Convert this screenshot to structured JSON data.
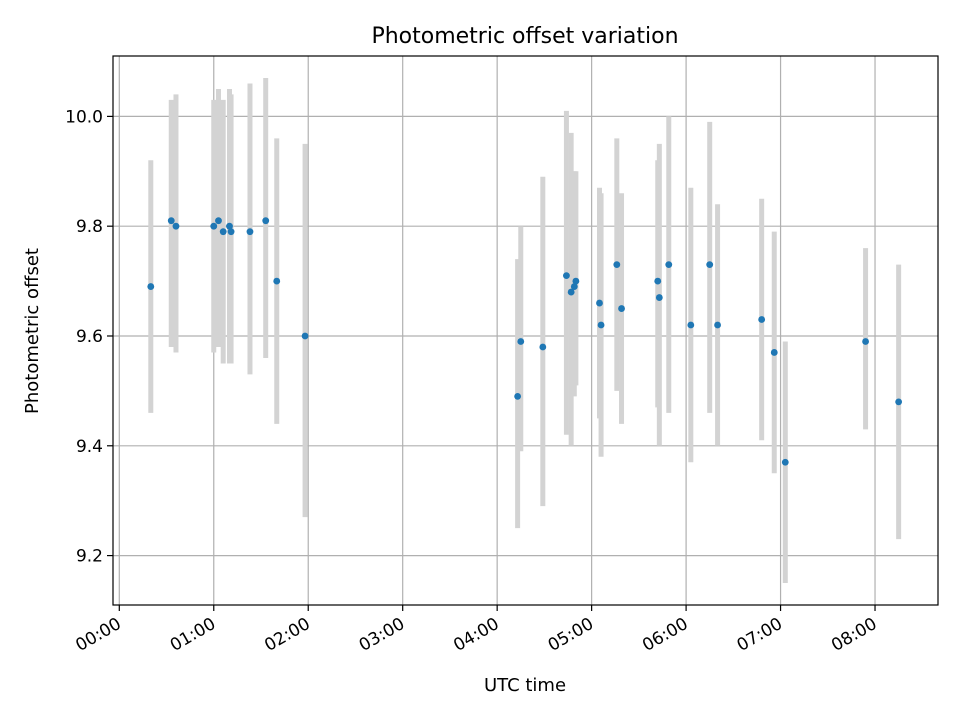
{
  "chart_data": {
    "type": "scatter",
    "title": "Photometric offset variation",
    "xlabel": "UTC time",
    "ylabel": "Photometric offset",
    "x_unit": "hours",
    "xlim": [
      "-00:04",
      "08:40"
    ],
    "ylim": [
      9.11,
      10.11
    ],
    "x_ticks": [
      "00:00",
      "01:00",
      "02:00",
      "03:00",
      "04:00",
      "05:00",
      "06:00",
      "07:00",
      "08:00"
    ],
    "y_ticks": [
      "9.2",
      "9.4",
      "9.6",
      "9.8",
      "10.0"
    ],
    "y_tick_values": [
      9.2,
      9.4,
      9.6,
      9.8,
      10.0
    ],
    "grid": true,
    "colors": {
      "marker": "#1f77b4",
      "errorbar": "#d3d3d3",
      "grid": "#b0b0b0"
    },
    "series": [
      {
        "points": [
          {
            "x": "00:20",
            "y": 9.69,
            "low": 9.46,
            "high": 9.92
          },
          {
            "x": "00:33",
            "y": 9.81,
            "low": 9.58,
            "high": 10.03
          },
          {
            "x": "00:36",
            "y": 9.8,
            "low": 9.57,
            "high": 10.04
          },
          {
            "x": "01:00",
            "y": 9.8,
            "low": 9.57,
            "high": 10.03
          },
          {
            "x": "01:03",
            "y": 9.81,
            "low": 9.58,
            "high": 10.05
          },
          {
            "x": "01:06",
            "y": 9.79,
            "low": 9.55,
            "high": 10.03
          },
          {
            "x": "01:10",
            "y": 9.8,
            "low": 9.55,
            "high": 10.05
          },
          {
            "x": "01:11",
            "y": 9.79,
            "low": 9.55,
            "high": 10.04
          },
          {
            "x": "01:23",
            "y": 9.79,
            "low": 9.53,
            "high": 10.06
          },
          {
            "x": "01:33",
            "y": 9.81,
            "low": 9.56,
            "high": 10.07
          },
          {
            "x": "01:40",
            "y": 9.7,
            "low": 9.44,
            "high": 9.96
          },
          {
            "x": "01:58",
            "y": 9.6,
            "low": 9.27,
            "high": 9.95
          },
          {
            "x": "04:13",
            "y": 9.49,
            "low": 9.25,
            "high": 9.74
          },
          {
            "x": "04:15",
            "y": 9.59,
            "low": 9.39,
            "high": 9.8
          },
          {
            "x": "04:29",
            "y": 9.58,
            "low": 9.29,
            "high": 9.89
          },
          {
            "x": "04:44",
            "y": 9.71,
            "low": 9.42,
            "high": 10.01
          },
          {
            "x": "04:47",
            "y": 9.68,
            "low": 9.4,
            "high": 9.97
          },
          {
            "x": "04:49",
            "y": 9.69,
            "low": 9.49,
            "high": 9.9
          },
          {
            "x": "04:50",
            "y": 9.7,
            "low": 9.51,
            "high": 9.9
          },
          {
            "x": "05:05",
            "y": 9.66,
            "low": 9.45,
            "high": 9.87
          },
          {
            "x": "05:06",
            "y": 9.62,
            "low": 9.38,
            "high": 9.86
          },
          {
            "x": "05:16",
            "y": 9.73,
            "low": 9.5,
            "high": 9.96
          },
          {
            "x": "05:19",
            "y": 9.65,
            "low": 9.44,
            "high": 9.86
          },
          {
            "x": "05:42",
            "y": 9.7,
            "low": 9.47,
            "high": 9.92
          },
          {
            "x": "05:43",
            "y": 9.67,
            "low": 9.4,
            "high": 9.95
          },
          {
            "x": "05:49",
            "y": 9.73,
            "low": 9.46,
            "high": 10.0
          },
          {
            "x": "06:03",
            "y": 9.62,
            "low": 9.37,
            "high": 9.87
          },
          {
            "x": "06:15",
            "y": 9.73,
            "low": 9.46,
            "high": 9.99
          },
          {
            "x": "06:20",
            "y": 9.62,
            "low": 9.4,
            "high": 9.84
          },
          {
            "x": "06:48",
            "y": 9.63,
            "low": 9.41,
            "high": 9.85
          },
          {
            "x": "06:56",
            "y": 9.57,
            "low": 9.35,
            "high": 9.79
          },
          {
            "x": "07:03",
            "y": 9.37,
            "low": 9.15,
            "high": 9.59
          },
          {
            "x": "07:54",
            "y": 9.59,
            "low": 9.43,
            "high": 9.76
          },
          {
            "x": "08:15",
            "y": 9.48,
            "low": 9.23,
            "high": 9.73
          }
        ]
      }
    ]
  }
}
